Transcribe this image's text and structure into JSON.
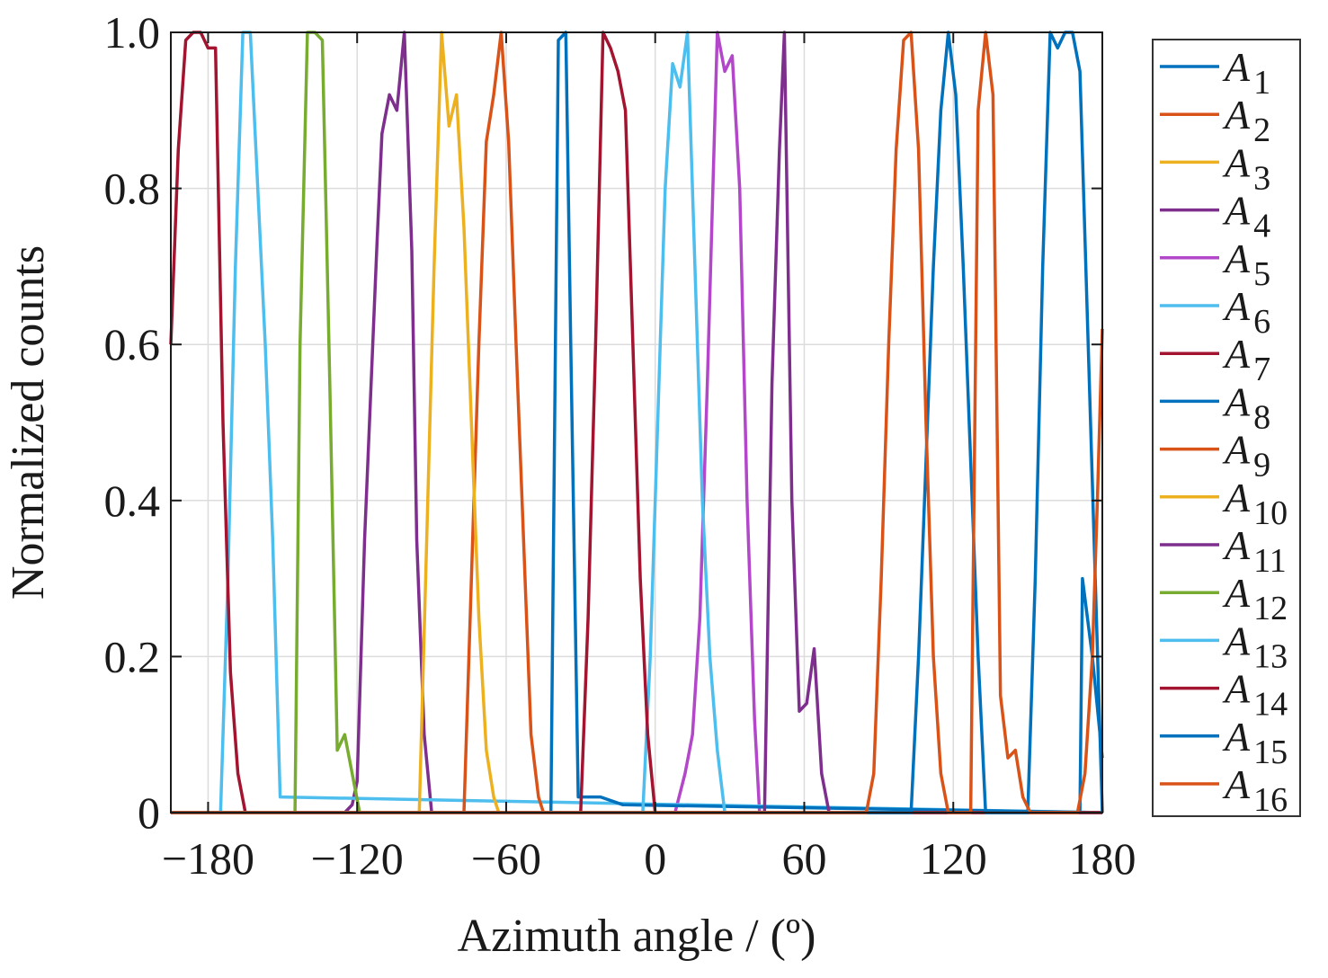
{
  "chart_data": {
    "type": "line",
    "title": "",
    "xlabel": "Azimuth angle / (º)",
    "ylabel": "Normalized counts",
    "xlim": [
      -195,
      180
    ],
    "ylim": [
      0,
      1.0
    ],
    "xticks": [
      -180,
      -120,
      -60,
      0,
      60,
      120,
      180
    ],
    "xtick_labels": [
      "−180",
      "−120",
      "−60",
      "0",
      "60",
      "120",
      "180"
    ],
    "yticks": [
      0,
      0.2,
      0.4,
      0.6,
      0.8,
      1.0
    ],
    "ytick_labels": [
      "0",
      "0.2",
      "0.4",
      "0.6",
      "0.8",
      "1.0"
    ],
    "grid": true,
    "legend": "outside-right",
    "series": [
      {
        "name": "A1",
        "label_main": "A",
        "label_sub": "1",
        "color": "#0072BD",
        "x": [
          -195,
          171,
          172,
          176,
          180
        ],
        "y": [
          0.0,
          0.0,
          0.3,
          0.2,
          0.07
        ]
      },
      {
        "name": "A2",
        "label_main": "A",
        "label_sub": "2",
        "color": "#D95319",
        "x": [
          -195,
          180
        ],
        "y": [
          0.0,
          0.0
        ]
      },
      {
        "name": "A3",
        "label_main": "A",
        "label_sub": "3",
        "color": "#EDB120",
        "x": [
          -195,
          180
        ],
        "y": [
          0.0,
          0.0
        ]
      },
      {
        "name": "A4",
        "label_main": "A",
        "label_sub": "4",
        "color": "#7E2F8E",
        "x": [
          -195,
          -125,
          -122,
          -120,
          -117,
          -112,
          -110,
          -107,
          -104,
          -101,
          -98,
          -96,
          -93,
          -90,
          -87,
          180
        ],
        "y": [
          0.0,
          0.0,
          0.01,
          0.04,
          0.35,
          0.73,
          0.87,
          0.92,
          0.9,
          1.0,
          0.72,
          0.35,
          0.1,
          0.0,
          0.0,
          0.0
        ]
      },
      {
        "name": "A5",
        "label_main": "A",
        "label_sub": "5",
        "color": "#B347C9",
        "x": [
          -195,
          8,
          12,
          15,
          18,
          21,
          25,
          28,
          31,
          34,
          37,
          40,
          42,
          180
        ],
        "y": [
          0.0,
          0.0,
          0.05,
          0.1,
          0.25,
          0.55,
          1.0,
          0.95,
          0.97,
          0.8,
          0.4,
          0.12,
          0.0,
          0.0
        ]
      },
      {
        "name": "A6",
        "label_main": "A",
        "label_sub": "6",
        "color": "#4DBEEE",
        "x": [
          -195,
          -175,
          -172,
          -169,
          -166,
          -163,
          -160,
          -157,
          -154,
          -151,
          180
        ],
        "y": [
          0.0,
          0.0,
          0.3,
          0.7,
          1.0,
          1.0,
          0.8,
          0.6,
          0.35,
          0.02,
          0.0
        ]
      },
      {
        "name": "A7",
        "label_main": "A",
        "label_sub": "7",
        "color": "#A2142F",
        "x": [
          -195,
          -192,
          -189,
          -186,
          -183,
          -180,
          -177,
          -174,
          -171,
          -168,
          -165,
          180
        ],
        "y": [
          0.6,
          0.85,
          0.99,
          1.0,
          1.0,
          0.98,
          0.98,
          0.5,
          0.18,
          0.05,
          0.0,
          0.0
        ]
      },
      {
        "name": "A8",
        "label_main": "A",
        "label_sub": "8",
        "color": "#0072BD",
        "x": [
          -195,
          -42,
          -39,
          -36,
          -34,
          -31,
          -28,
          -22,
          -13,
          180
        ],
        "y": [
          0.0,
          0.0,
          0.99,
          1.0,
          0.6,
          0.02,
          0.02,
          0.02,
          0.01,
          0.0
        ]
      },
      {
        "name": "A9",
        "label_main": "A",
        "label_sub": "9",
        "color": "#D95319",
        "x": [
          -195,
          -77,
          -74,
          -71,
          -68,
          -65,
          -62,
          -59,
          -56,
          -53,
          -50,
          -47,
          -45,
          180
        ],
        "y": [
          0.0,
          0.0,
          0.3,
          0.6,
          0.86,
          0.92,
          1.0,
          0.86,
          0.6,
          0.35,
          0.1,
          0.02,
          0.0,
          0.0
        ]
      },
      {
        "name": "A10",
        "label_main": "A",
        "label_sub": "10",
        "color": "#EDB120",
        "x": [
          -195,
          -95,
          -92,
          -89,
          -86,
          -83,
          -80,
          -77,
          -74,
          -71,
          -68,
          -65,
          -63,
          180
        ],
        "y": [
          0.0,
          0.0,
          0.35,
          0.7,
          1.0,
          0.88,
          0.92,
          0.75,
          0.5,
          0.25,
          0.08,
          0.02,
          0.0,
          0.0
        ]
      },
      {
        "name": "A11",
        "label_main": "A",
        "label_sub": "11",
        "color": "#7E2F8E",
        "x": [
          -195,
          44,
          47,
          50,
          52,
          55,
          58,
          61,
          64,
          67,
          70,
          180
        ],
        "y": [
          0.0,
          0.0,
          0.55,
          0.85,
          1.0,
          0.4,
          0.13,
          0.14,
          0.21,
          0.05,
          0.0,
          0.0
        ]
      },
      {
        "name": "A12",
        "label_main": "A",
        "label_sub": "12",
        "color": "#77AC30",
        "x": [
          -195,
          -145,
          -143,
          -140,
          -137,
          -134,
          -131,
          -128,
          -125,
          -122,
          -119,
          180
        ],
        "y": [
          0.0,
          0.0,
          0.6,
          1.0,
          1.0,
          0.99,
          0.55,
          0.08,
          0.1,
          0.05,
          0.0,
          0.0
        ]
      },
      {
        "name": "A13",
        "label_main": "A",
        "label_sub": "13",
        "color": "#4DBEEE",
        "x": [
          -195,
          -5,
          -2,
          1,
          4,
          7,
          10,
          13,
          16,
          19,
          22,
          25,
          28,
          180
        ],
        "y": [
          0.0,
          0.0,
          0.2,
          0.5,
          0.8,
          0.96,
          0.93,
          1.0,
          0.7,
          0.4,
          0.2,
          0.08,
          0.0,
          0.0
        ]
      },
      {
        "name": "A14",
        "label_main": "A",
        "label_sub": "14",
        "color": "#A2142F",
        "x": [
          -195,
          -30,
          -27,
          -24,
          -21,
          -18,
          -15,
          -12,
          -9,
          -6,
          -3,
          0,
          180
        ],
        "y": [
          0.0,
          0.0,
          0.25,
          0.6,
          1.0,
          0.98,
          0.95,
          0.9,
          0.6,
          0.3,
          0.1,
          0.0,
          0.0
        ]
      },
      {
        "name": "A15",
        "label_main": "A",
        "label_sub": "15",
        "color": "#0072BD",
        "x": [
          -195,
          103,
          106,
          109,
          112,
          115,
          118,
          121,
          124,
          127,
          130,
          133,
          150,
          153,
          156,
          159,
          162,
          165,
          168,
          171,
          180
        ],
        "y": [
          0.0,
          0.0,
          0.2,
          0.45,
          0.7,
          0.9,
          1.0,
          0.92,
          0.7,
          0.45,
          0.2,
          0.0,
          0.0,
          0.3,
          0.7,
          1.0,
          0.98,
          1.0,
          1.0,
          0.95,
          0.0
        ]
      },
      {
        "name": "A16",
        "label_main": "A",
        "label_sub": "16",
        "color": "#D95319",
        "x": [
          -195,
          85,
          88,
          91,
          94,
          97,
          100,
          103,
          106,
          109,
          112,
          115,
          118,
          121,
          124,
          127,
          130,
          133,
          136,
          139,
          142,
          145,
          148,
          151,
          154,
          170,
          173,
          176,
          178,
          180
        ],
        "y": [
          0.0,
          0.0,
          0.05,
          0.3,
          0.6,
          0.85,
          0.99,
          1.0,
          0.85,
          0.5,
          0.2,
          0.05,
          0.0,
          0.0,
          0.0,
          0.0,
          0.9,
          1.0,
          0.92,
          0.15,
          0.07,
          0.08,
          0.02,
          0.0,
          0.0,
          0.0,
          0.05,
          0.2,
          0.4,
          0.62
        ]
      }
    ]
  }
}
